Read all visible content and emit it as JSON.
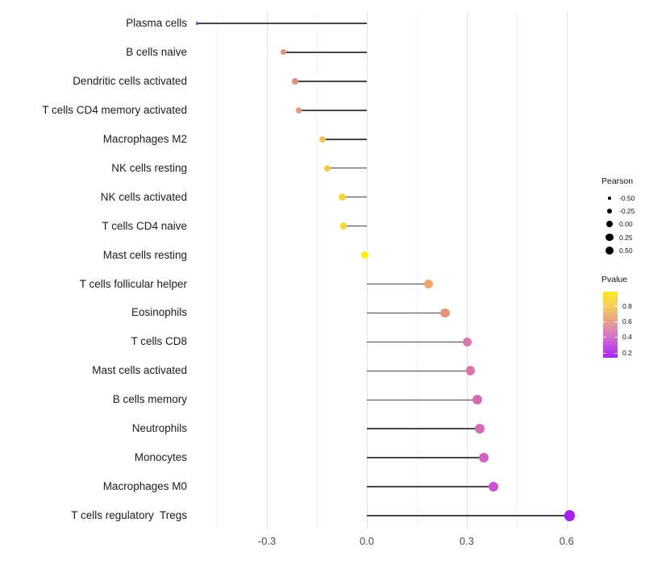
{
  "chart_data": {
    "type": "scatter",
    "subtype": "lollipop-horizontal",
    "title": "",
    "xlabel": "",
    "ylabel": "",
    "categories": [
      "Plasma cells",
      "B cells naive",
      "Dendritic cells activated",
      "T cells CD4 memory activated",
      "Macrophages M2",
      "NK cells resting",
      "NK cells activated",
      "T cells CD4 naive",
      "Mast cells resting",
      "T cells follicular helper",
      "Eosinophils",
      "T cells CD8",
      "Mast cells activated",
      "B cells memory",
      "Neutrophils",
      "Monocytes",
      "Macrophages M0",
      "T cells regulatory  Tregs"
    ],
    "series": [
      {
        "name": "Pearson",
        "values": [
          -0.51,
          -0.25,
          -0.215,
          -0.205,
          -0.133,
          -0.119,
          -0.074,
          -0.07,
          -0.006,
          0.186,
          0.235,
          0.301,
          0.311,
          0.332,
          0.338,
          0.351,
          0.381,
          0.609
        ]
      }
    ],
    "point_colors": [
      "#9b32d4",
      "#dd8e83",
      "#e19179",
      "#e69b7d",
      "#f1c156",
      "#f2c84f",
      "#f5d63d",
      "#f5d838",
      "#f9ee0d",
      "#eca76d",
      "#e3947f",
      "#d878ab",
      "#d877ae",
      "#d36cb6",
      "#d26ab4",
      "#cf64c0",
      "#c553cf",
      "#a521ee"
    ],
    "x_ticks": [
      "-0.3",
      "0.0",
      "0.3",
      "0.6"
    ],
    "x_tick_values": [
      -0.3,
      0.0,
      0.3,
      0.6
    ],
    "x_minor_tick_values": [
      -0.45,
      -0.15,
      0.15,
      0.45
    ],
    "xlim": [
      -0.53,
      0.67
    ],
    "grid": "vertical-only",
    "legend_position": "right",
    "size_encoding": "Pearson",
    "color_encoding": "Pvalue"
  },
  "legend": {
    "size": {
      "title": "Pearson",
      "items": [
        {
          "label": "-0.50",
          "value": -0.5
        },
        {
          "label": "-0.25",
          "value": -0.25
        },
        {
          "label": "0.00",
          "value": 0.0
        },
        {
          "label": "0.25",
          "value": 0.25
        },
        {
          "label": "0.50",
          "value": 0.5
        }
      ]
    },
    "color": {
      "title": "Pvalue",
      "ticks": [
        {
          "label": "0.8",
          "value": 0.8
        },
        {
          "label": "0.6",
          "value": 0.6
        },
        {
          "label": "0.4",
          "value": 0.4
        },
        {
          "label": "0.2",
          "value": 0.2
        }
      ],
      "gradient_stops": [
        "#F9E821",
        "#F5CE60",
        "#EBAA7E",
        "#DE86B5",
        "#C75BDC",
        "#A726EE"
      ]
    }
  },
  "colors": {
    "stem": "#474747",
    "grid_major": "#e3e3e3",
    "grid_minor": "#f2f2f2",
    "axis_text": "#4d4d4d",
    "label_text": "#1c1c1c",
    "legend_dot": "#000000"
  }
}
